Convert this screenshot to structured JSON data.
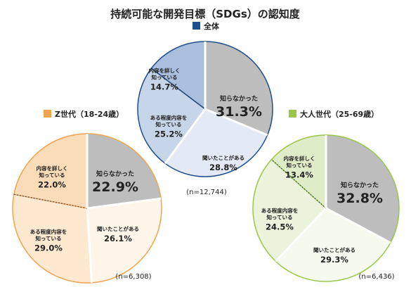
{
  "title": "持続可能な開発目標（SDGs）の認知度",
  "colors": {
    "pie_stroke": "#ffffff",
    "dotted_line": "#2a3f6a"
  },
  "chart_data": [
    {
      "type": "pie",
      "name": "全体",
      "n": "(n=12,744)",
      "legend_color": "#1f4e8c",
      "slices": [
        {
          "label": "知らなかった",
          "value": 31.3,
          "pct": "31.3%",
          "color": "#bdbdbd",
          "border": "#1f4e8c"
        },
        {
          "label": "聞いたことがある",
          "value": 28.8,
          "pct": "28.8%",
          "color": "#e3eaf5",
          "border": "#1f4e8c"
        },
        {
          "label": "ある程度内容を知っている",
          "label_lines": [
            "ある程度内容を",
            "知っている"
          ],
          "value": 25.2,
          "pct": "25.2%",
          "color": "#c7d5e9",
          "border": "#1f4e8c"
        },
        {
          "label": "内容を詳しく知っている",
          "label_lines": [
            "内容を詳しく",
            "知っている"
          ],
          "value": 14.7,
          "pct": "14.7%",
          "color": "#a9bfdd",
          "border": "#1f4e8c"
        }
      ]
    },
    {
      "type": "pie",
      "name": "Z世代（18-24歳）",
      "n": "(n=6,308)",
      "legend_color": "#f0a450",
      "slices": [
        {
          "label": "知らなかった",
          "value": 22.9,
          "pct": "22.9%",
          "color": "#bdbdbd",
          "border": "#f0a450"
        },
        {
          "label": "聞いたことがある",
          "value": 26.1,
          "pct": "26.1%",
          "color": "#fff5e8",
          "border": "#f0a450"
        },
        {
          "label": "ある程度内容を知っている",
          "label_lines": [
            "ある程度内容を",
            "知っている"
          ],
          "value": 29.0,
          "pct": "29.0%",
          "color": "#fde8d0",
          "border": "#f0a450"
        },
        {
          "label": "内容を詳しく知っている",
          "label_lines": [
            "内容を詳しく",
            "知っている"
          ],
          "value": 22.0,
          "pct": "22.0%",
          "color": "#fbdcb9",
          "border": "#f0a450"
        }
      ]
    },
    {
      "type": "pie",
      "name": "大人世代（25-69歳）",
      "n": "(n=6,436)",
      "legend_color": "#9bc64b",
      "slices": [
        {
          "label": "知らなかった",
          "value": 32.8,
          "pct": "32.8%",
          "color": "#bdbdbd",
          "border": "#9bc64b"
        },
        {
          "label": "聞いたことがある",
          "value": 29.3,
          "pct": "29.3%",
          "color": "#f6faee",
          "border": "#9bc64b"
        },
        {
          "label": "ある程度内容を知っている",
          "label_lines": [
            "ある程度内容を",
            "知っている"
          ],
          "value": 24.5,
          "pct": "24.5%",
          "color": "#ebf3dc",
          "border": "#9bc64b"
        },
        {
          "label": "内容を詳しく知っている",
          "label_lines": [
            "内容を詳しく",
            "知っている"
          ],
          "value": 13.4,
          "pct": "13.4%",
          "color": "#dfecc8",
          "border": "#9bc64b"
        }
      ]
    }
  ]
}
